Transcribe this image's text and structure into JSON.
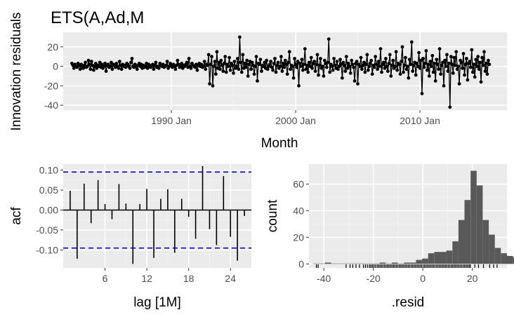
{
  "title": "ETS(A,Ad,M",
  "colors": {
    "panel_bg": "#EBEBEB",
    "grid_major": "#FFFFFF",
    "grid_minor": "#F3F3F3",
    "line": "#000000",
    "bar": "#595959",
    "ci": "#0000CC",
    "tick_text": "#4D4D4D"
  },
  "chart_data": [
    {
      "id": "residuals",
      "type": "line",
      "title": "",
      "xlabel": "Month",
      "ylabel": "Innovation residuals",
      "xlim": [
        1981.3,
        2017.0
      ],
      "ylim": [
        -45,
        35
      ],
      "x_ticks": [
        1990,
        2000,
        2010
      ],
      "x_tick_labels": [
        "1990 Jan",
        "2000 Jan",
        "2010 Jan"
      ],
      "y_ticks": [
        -40,
        -20,
        0,
        20
      ],
      "y_tick_labels": [
        "-40",
        "-20",
        "0",
        "20"
      ],
      "x_start": 1982.0,
      "x_step": 0.08333,
      "markers": true,
      "grid": true,
      "values": [
        3,
        1,
        -2,
        2,
        0,
        -1,
        3,
        1,
        -3,
        2,
        0,
        -2,
        1,
        4,
        -1,
        0,
        6,
        2,
        -3,
        5,
        1,
        -4,
        0,
        3,
        -2,
        1,
        0,
        4,
        -1,
        2,
        -2,
        0,
        3,
        -5,
        1,
        2,
        -1,
        0,
        4,
        -3,
        2,
        1,
        -1,
        3,
        0,
        -2,
        5,
        1,
        -3,
        2,
        0,
        1,
        -1,
        3,
        2,
        0,
        -2,
        4,
        8,
        0,
        -1,
        2,
        0,
        -3,
        1,
        3,
        0,
        2,
        -2,
        1,
        -1,
        0,
        3,
        -2,
        2,
        1,
        -1,
        0,
        2,
        -3,
        1,
        4,
        -1,
        0,
        -2,
        3,
        1,
        0,
        2,
        -1,
        0,
        1,
        5,
        -2,
        0,
        3,
        1,
        -1,
        2,
        0,
        -3,
        1,
        6,
        2,
        -1,
        0,
        3,
        -2,
        1,
        0,
        2,
        4,
        -1,
        8,
        0,
        -2,
        3,
        1,
        0,
        -1,
        2,
        -4,
        1,
        3,
        0,
        2,
        -1,
        0,
        5,
        -3,
        2,
        1,
        12,
        -18,
        2,
        10,
        -20,
        0,
        5,
        -8,
        15,
        -2,
        4,
        -3,
        6,
        1,
        -5,
        3,
        10,
        -6,
        2,
        0,
        9,
        -4,
        3,
        1,
        -7,
        5,
        -2,
        0,
        8,
        -3,
        30,
        4,
        -6,
        12,
        -2,
        3,
        -1,
        6,
        -10,
        2,
        5,
        -3,
        4,
        1,
        -8,
        0,
        10,
        -15,
        3,
        2,
        7,
        -5,
        1,
        0,
        4,
        -2,
        6,
        -3,
        0,
        2,
        5,
        -1,
        -4,
        3,
        8,
        -6,
        1,
        4,
        -2,
        0,
        10,
        -5,
        3,
        -1,
        6,
        2,
        -8,
        4,
        15,
        -3,
        1,
        0,
        -12,
        8,
        2,
        -1,
        5,
        -20,
        3,
        0,
        7,
        -4,
        2,
        18,
        -3,
        1,
        -6,
        4,
        0,
        9,
        -2,
        3,
        5,
        -5,
        2,
        12,
        -9,
        1,
        8,
        -2,
        0,
        -10,
        6,
        3,
        -1,
        4,
        28,
        -6,
        2,
        0,
        -4,
        8,
        1,
        -2,
        5,
        -3,
        0,
        7,
        2,
        -12,
        4,
        1,
        -5,
        10,
        -2,
        3,
        0,
        -7,
        6,
        2,
        -1,
        -15,
        3,
        5,
        -18,
        2,
        0,
        9,
        -3,
        1,
        4,
        -6,
        2,
        12,
        -4,
        0,
        3,
        6,
        -8,
        1,
        -1,
        10,
        2,
        -3,
        5,
        0,
        18,
        -6,
        2,
        4,
        -2,
        8,
        0,
        -5,
        3,
        12,
        -10,
        1,
        6,
        -2,
        0,
        15,
        -4,
        3,
        2,
        -8,
        5,
        20,
        -6,
        1,
        9,
        -3,
        0,
        -12,
        7,
        2,
        25,
        -5,
        1,
        4,
        -9,
        3,
        0,
        14,
        -2,
        6,
        -28,
        8,
        -1,
        3,
        16,
        -4,
        2,
        -10,
        5,
        0,
        11,
        -6,
        3,
        -15,
        7,
        2,
        -3,
        18,
        -8,
        1,
        4,
        -20,
        6,
        0,
        12,
        -5,
        3,
        -42,
        10,
        2,
        -7,
        9,
        1,
        15,
        -3,
        0,
        -18,
        6,
        4,
        -2,
        13,
        -9,
        2,
        8,
        -14,
        3,
        5,
        -1,
        17,
        -6,
        2,
        -11,
        7,
        0,
        10,
        -3,
        4,
        -16,
        9,
        1,
        15,
        -5,
        3,
        -8,
        6,
        2
      ]
    },
    {
      "id": "acf",
      "type": "bar",
      "title": "",
      "xlabel": "lag [1M]",
      "ylabel": "acf",
      "xlim": [
        0,
        27
      ],
      "ylim": [
        -0.145,
        0.115
      ],
      "x_ticks": [
        6,
        12,
        18,
        24
      ],
      "x_tick_labels": [
        "6",
        "12",
        "18",
        "24"
      ],
      "y_ticks": [
        -0.1,
        -0.05,
        0.0,
        0.05,
        0.1
      ],
      "y_tick_labels": [
        "-0.10",
        "-0.05",
        "0.00",
        "0.05",
        "0.10"
      ],
      "lags": [
        1,
        2,
        3,
        4,
        5,
        6,
        7,
        8,
        9,
        10,
        11,
        12,
        13,
        14,
        15,
        16,
        17,
        18,
        19,
        20,
        21,
        22,
        23,
        24,
        25,
        26
      ],
      "values": [
        0.048,
        -0.122,
        0.066,
        -0.033,
        0.075,
        0.015,
        -0.023,
        0.065,
        0.016,
        -0.135,
        0.015,
        0.053,
        -0.12,
        0.028,
        0.052,
        -0.107,
        0.028,
        -0.017,
        -0.072,
        0.11,
        -0.048,
        -0.088,
        0.085,
        -0.067,
        -0.127,
        -0.015
      ],
      "ci": [
        0.0952,
        -0.0952
      ],
      "grid": true
    },
    {
      "id": "histogram",
      "type": "bar",
      "title": "",
      "xlabel": ".resid",
      "ylabel": "count",
      "xlim": [
        -46,
        34
      ],
      "ylim": [
        -3,
        75
      ],
      "x_ticks": [
        -40,
        -20,
        0,
        20
      ],
      "x_tick_labels": [
        "-40",
        "-20",
        "0",
        "20"
      ],
      "y_ticks": [
        0,
        20,
        40,
        60
      ],
      "y_tick_labels": [
        "0",
        "20",
        "40",
        "60"
      ],
      "bin_start": -44.4,
      "bin_width": 2.45,
      "counts": [
        0,
        0,
        1,
        0,
        0,
        0,
        0,
        0,
        0,
        0,
        0,
        1,
        0,
        1,
        0,
        1,
        1,
        3,
        4,
        8,
        9,
        9,
        10,
        17,
        33,
        48,
        70,
        59,
        33,
        22,
        12,
        8,
        6,
        5,
        3,
        1,
        2,
        1,
        0,
        1,
        1,
        1
      ],
      "rug": [
        -43,
        -42.3,
        -31,
        -29.4,
        -28.3,
        -27,
        -25.6,
        -24,
        -23.2,
        -22.4,
        -21.6,
        -21,
        -20.4,
        -19.8,
        -19.2,
        -18.5,
        -17.9,
        -17.3,
        -16.7,
        -16.1,
        -15.5,
        -14.9,
        -14.3,
        -13.7,
        -13.1,
        -12.5,
        -11.9,
        -11.3,
        -10.7,
        -10.1,
        -9.5,
        -8.9,
        -8.3,
        -7.7,
        -7.1,
        -6.5,
        -5.9,
        -5.3,
        -4.7,
        -4.1,
        -3.5,
        -2.9,
        -2.3,
        -1.7,
        -1.1,
        -0.5,
        0.1,
        0.7,
        1.3,
        1.9,
        2.5,
        3.1,
        3.7,
        4.3,
        4.9,
        5.5,
        6.1,
        6.7,
        7.3,
        7.9,
        8.5,
        9.1,
        9.7,
        10.3,
        10.9,
        11.5,
        12.1,
        12.7,
        13.3,
        13.9,
        14.5,
        15.1,
        15.7,
        16.3,
        16.9,
        17.5,
        18.1,
        18.7,
        19.2,
        21,
        22.5,
        24.5,
        27,
        28.6,
        30
      ],
      "grid": true
    }
  ]
}
